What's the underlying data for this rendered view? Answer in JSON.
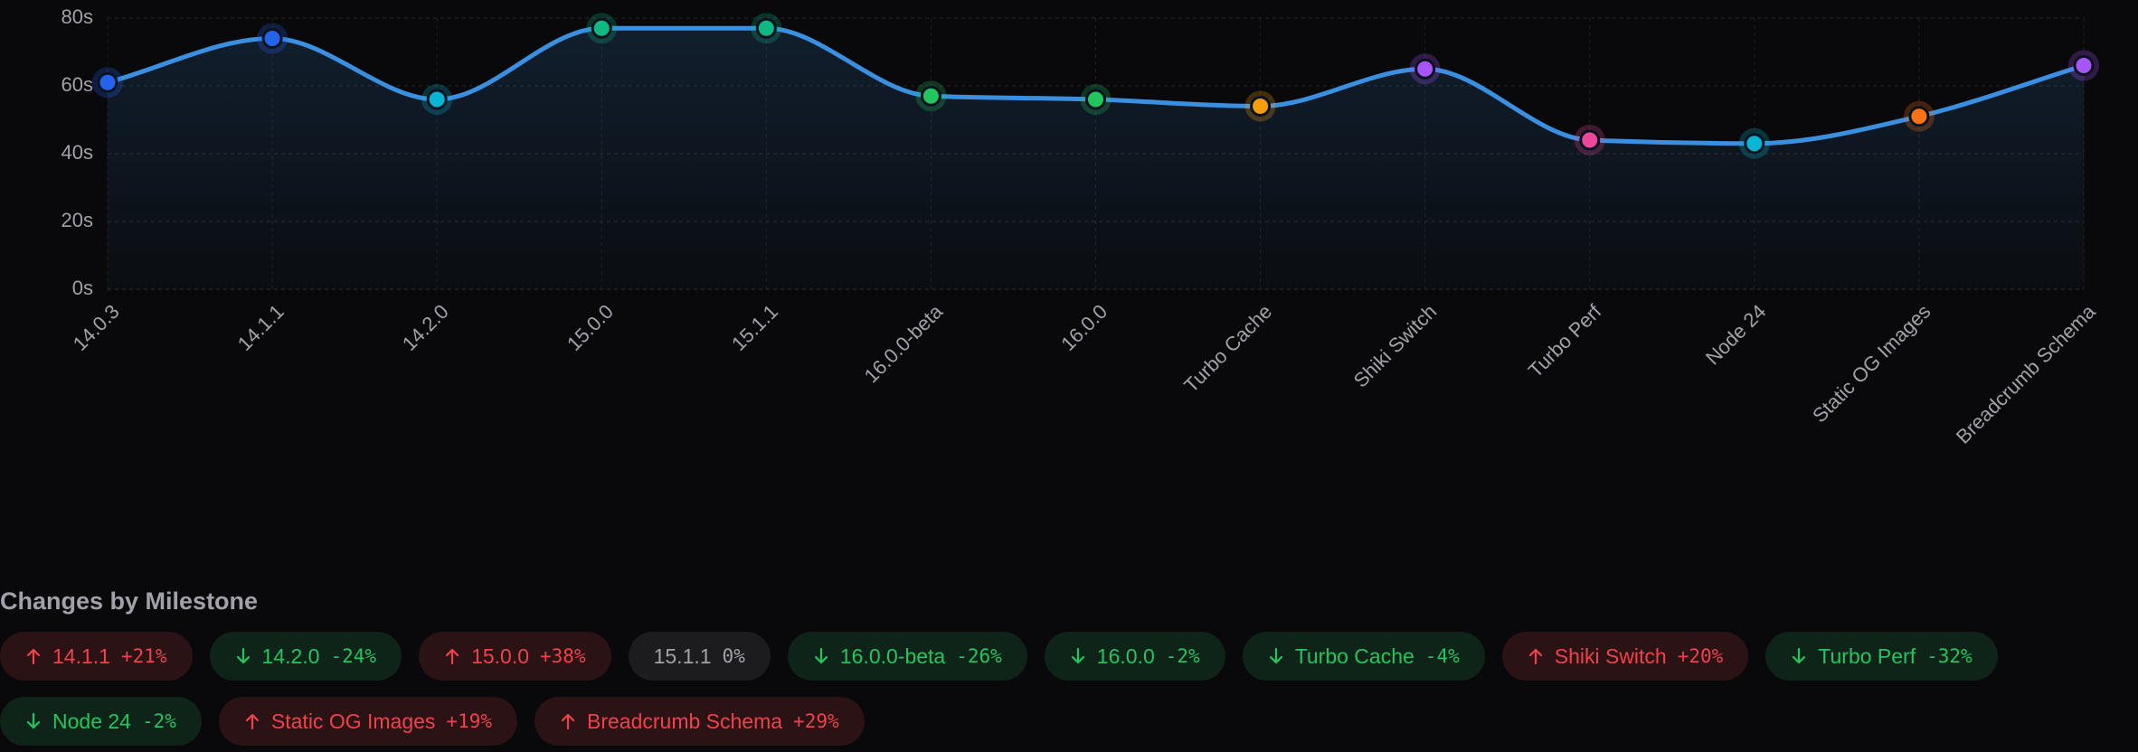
{
  "chart_data": {
    "type": "line",
    "categories": [
      "14.0.3",
      "14.1.1",
      "14.2.0",
      "15.0.0",
      "15.1.1",
      "16.0.0-beta",
      "16.0.0",
      "Turbo Cache",
      "Shiki Switch",
      "Turbo Perf",
      "Node 24",
      "Static OG Images",
      "Breadcrumb Schema"
    ],
    "series": [
      {
        "color": "#3b8fe0",
        "values": [
          61,
          74,
          56,
          77,
          77,
          57,
          56,
          54,
          65,
          44,
          43,
          51,
          66
        ],
        "point_colors": [
          "#2563eb",
          "#2563eb",
          "#06b6d4",
          "#10b981",
          "#10b981",
          "#22c55e",
          "#22c55e",
          "#f59e0b",
          "#a855f7",
          "#ec4899",
          "#06b6d4",
          "#f97316",
          "#a855f7"
        ]
      }
    ],
    "ylim": [
      0,
      80
    ],
    "yticks": [
      {
        "value": 0,
        "label": "0s"
      },
      {
        "value": 20,
        "label": "20s"
      },
      {
        "value": 40,
        "label": "40s"
      },
      {
        "value": 60,
        "label": "60s"
      },
      {
        "value": 80,
        "label": "80s"
      }
    ],
    "grid": true
  },
  "changes": {
    "title": "Changes by Milestone",
    "items": [
      {
        "name": "14.1.1",
        "change": "+21%"
      },
      {
        "name": "14.2.0",
        "change": "-24%"
      },
      {
        "name": "15.0.0",
        "change": "+38%"
      },
      {
        "name": "15.1.1",
        "change": "0%"
      },
      {
        "name": "16.0.0-beta",
        "change": "-26%"
      },
      {
        "name": "16.0.0",
        "change": "-2%"
      },
      {
        "name": "Turbo Cache",
        "change": "-4%"
      },
      {
        "name": "Shiki Switch",
        "change": "+20%"
      },
      {
        "name": "Turbo Perf",
        "change": "-32%"
      },
      {
        "name": "Node 24",
        "change": "-2%"
      },
      {
        "name": "Static OG Images",
        "change": "+19%"
      },
      {
        "name": "Breadcrumb Schema",
        "change": "+29%"
      }
    ]
  }
}
